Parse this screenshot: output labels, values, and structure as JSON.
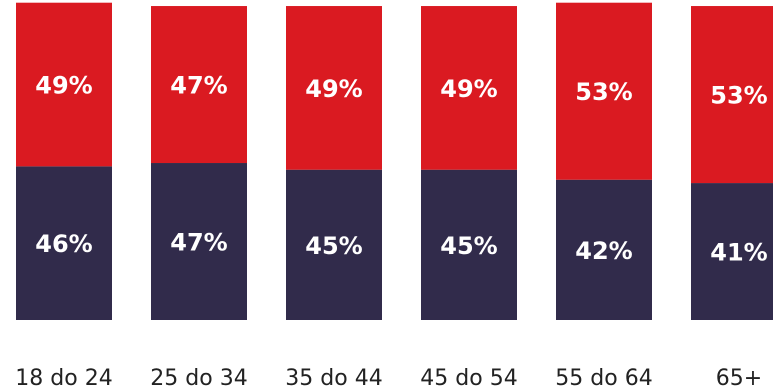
{
  "chart_data": {
    "type": "bar",
    "stacked": true,
    "title": "",
    "xlabel": "",
    "ylabel": "",
    "categories": [
      "18 do 24",
      "25 do 34",
      "35 do 44",
      "45 do 54",
      "55 do 64",
      "65+"
    ],
    "series": [
      {
        "values": [
          46,
          47,
          45,
          45,
          42,
          41
        ],
        "labels": [
          "46%",
          "47%",
          "45%",
          "45%",
          "42%",
          "41%"
        ],
        "color": "#312b4b"
      },
      {
        "values": [
          49,
          47,
          49,
          49,
          53,
          53
        ],
        "labels": [
          "49%",
          "47%",
          "49%",
          "49%",
          "53%",
          "53%"
        ],
        "color": "#da1a21"
      }
    ],
    "grid": false,
    "legend": "none"
  }
}
